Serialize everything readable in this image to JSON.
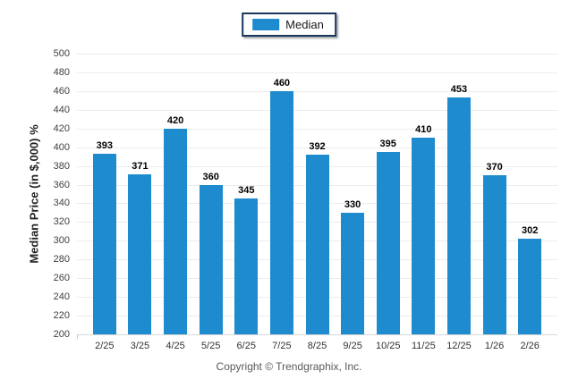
{
  "legend": {
    "label": "Median",
    "swatch_color": "#1d8bce"
  },
  "footer": {
    "copyright": "Copyright © Trendgraphix, Inc."
  },
  "colors": {
    "bar": "#1d8bce",
    "gridline": "#ececec",
    "legend_border": "#17375d"
  },
  "chart_data": {
    "type": "bar",
    "title": "",
    "series_name": "Median",
    "categories": [
      "2/25",
      "3/25",
      "4/25",
      "5/25",
      "6/25",
      "7/25",
      "8/25",
      "9/25",
      "10/25",
      "11/25",
      "12/25",
      "1/26",
      "2/26"
    ],
    "values": [
      393,
      371,
      420,
      360,
      345,
      460,
      392,
      330,
      395,
      410,
      453,
      370,
      302
    ],
    "xlabel": "",
    "ylabel": "Median Price (in $,000) %",
    "ylim": [
      200,
      500
    ],
    "ytick_step": 20,
    "grid": "horizontal",
    "legend_position": "top-center",
    "value_labels": "above-bars"
  }
}
